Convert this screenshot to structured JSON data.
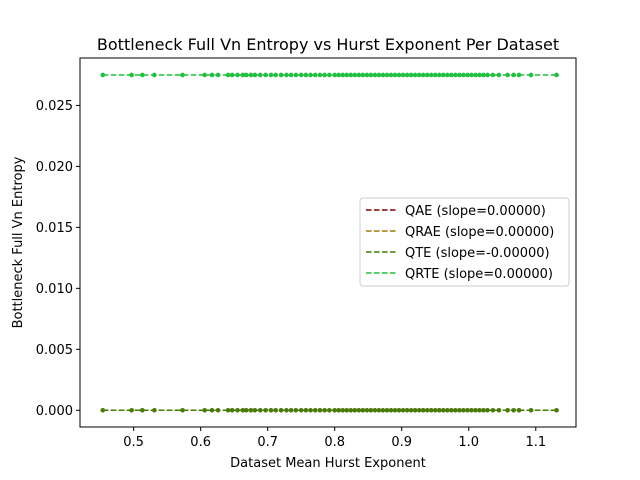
{
  "chart_data": {
    "type": "scatter",
    "title": "Bottleneck Full Vn Entropy vs Hurst Exponent Per Dataset",
    "xlabel": "Dataset Mean Hurst Exponent",
    "ylabel": "Bottleneck Full Vn Entropy",
    "xlim": [
      0.42,
      1.16
    ],
    "ylim": [
      -0.00137,
      0.02889
    ],
    "xticks": [
      0.5,
      0.6,
      0.7,
      0.8,
      0.9,
      1.0,
      1.1
    ],
    "xtick_labels": [
      "0.5",
      "0.6",
      "0.7",
      "0.8",
      "0.9",
      "1.0",
      "1.1"
    ],
    "yticks": [
      0.0,
      0.005,
      0.01,
      0.015,
      0.02,
      0.025
    ],
    "ytick_labels": [
      "0.000",
      "0.005",
      "0.010",
      "0.015",
      "0.020",
      "0.025"
    ],
    "grid": false,
    "legend_position": "center-right",
    "x_points": [
      0.454,
      0.497,
      0.513,
      0.531,
      0.573,
      0.606,
      0.617,
      0.626,
      0.641,
      0.647,
      0.655,
      0.663,
      0.668,
      0.675,
      0.681,
      0.689,
      0.697,
      0.705,
      0.712,
      0.72,
      0.728,
      0.735,
      0.742,
      0.75,
      0.757,
      0.764,
      0.771,
      0.778,
      0.785,
      0.792,
      0.8,
      0.806,
      0.812,
      0.818,
      0.824,
      0.83,
      0.836,
      0.842,
      0.848,
      0.854,
      0.86,
      0.866,
      0.872,
      0.878,
      0.884,
      0.89,
      0.896,
      0.902,
      0.908,
      0.914,
      0.92,
      0.926,
      0.932,
      0.938,
      0.944,
      0.95,
      0.956,
      0.962,
      0.968,
      0.974,
      0.98,
      0.986,
      0.992,
      0.998,
      1.004,
      1.01,
      1.016,
      1.022,
      1.028,
      1.036,
      1.045,
      1.058,
      1.067,
      1.075,
      1.093,
      1.131
    ],
    "series": [
      {
        "name": "QAE (slope=0.00000)",
        "color": "#7f0000",
        "y_value": 0.0
      },
      {
        "name": "QRAE (slope=0.00000)",
        "color": "#a07800",
        "y_value": 0.0
      },
      {
        "name": "QTE (slope=-0.00000)",
        "color": "#3e7f00",
        "y_value": 0.0
      },
      {
        "name": "QRTE (slope=0.00000)",
        "color": "#1ec03a",
        "y_value": 0.0275
      }
    ],
    "point_colors": {
      "bottom": "#4a7a0a",
      "top": "#22c040"
    }
  }
}
